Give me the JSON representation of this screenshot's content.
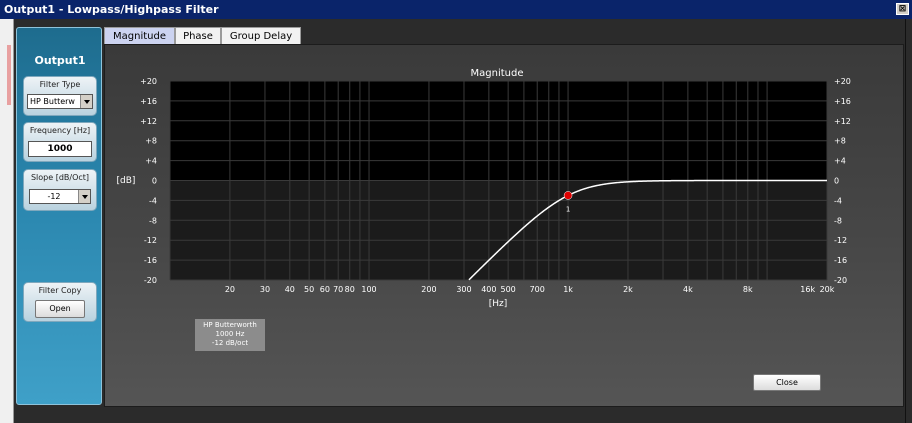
{
  "window": {
    "title": "Output1 - Lowpass/Highpass Filter",
    "close_glyph": "⊠"
  },
  "sidebar": {
    "title": "Output1",
    "filter_type": {
      "label": "Filter Type",
      "value": "HP Butterw"
    },
    "frequency": {
      "label": "Frequency [Hz]",
      "value": "1000"
    },
    "slope": {
      "label": "Slope [dB/Oct]",
      "value": "-12"
    },
    "filter_copy": {
      "label": "Filter Copy",
      "button": "Open"
    }
  },
  "tabs": [
    {
      "label": "Magnitude",
      "active": true
    },
    {
      "label": "Phase",
      "active": false
    },
    {
      "label": "Group Delay",
      "active": false
    }
  ],
  "info": {
    "line1": "HP Butterworth",
    "line2": "1000 Hz",
    "line3": "-12 dB/oct"
  },
  "close_button": "Close",
  "chart_data": {
    "type": "line",
    "title": "Magnitude",
    "xlabel": "[Hz]",
    "ylabel": "[dB]",
    "xscale": "log",
    "xlim": [
      10,
      20000
    ],
    "ylim": [
      -20,
      20
    ],
    "y_ticks": [
      "+20",
      "+16",
      "+12",
      "+8",
      "+4",
      "0",
      "-4",
      "-8",
      "-12",
      "-16",
      "-20"
    ],
    "y_tick_values": [
      20,
      16,
      12,
      8,
      4,
      0,
      -4,
      -8,
      -12,
      -16,
      -20
    ],
    "x_ticks": [
      {
        "value": 20,
        "label": "20"
      },
      {
        "value": 30,
        "label": "30"
      },
      {
        "value": 40,
        "label": "40"
      },
      {
        "value": 50,
        "label": "50"
      },
      {
        "value": 60,
        "label": "60"
      },
      {
        "value": 70,
        "label": "70"
      },
      {
        "value": 80,
        "label": "80"
      },
      {
        "value": 100,
        "label": "100"
      },
      {
        "value": 200,
        "label": "200"
      },
      {
        "value": 300,
        "label": "300"
      },
      {
        "value": 400,
        "label": "400"
      },
      {
        "value": 500,
        "label": "500"
      },
      {
        "value": 700,
        "label": "700"
      },
      {
        "value": 1000,
        "label": "1k"
      },
      {
        "value": 2000,
        "label": "2k"
      },
      {
        "value": 4000,
        "label": "4k"
      },
      {
        "value": 8000,
        "label": "8k"
      },
      {
        "value": 16000,
        "label": "16k"
      },
      {
        "value": 20000,
        "label": "20k"
      }
    ],
    "grid": true,
    "series": [
      {
        "cutoff_hz": 1000,
        "order": 2
      }
    ],
    "markers": [
      {
        "x": 1000,
        "y": -3,
        "label": "1",
        "color": "#e00000"
      }
    ],
    "colors": {
      "plot_bg": "#000000",
      "curve": "#ffffff",
      "grid": "#3a3a3a"
    }
  }
}
